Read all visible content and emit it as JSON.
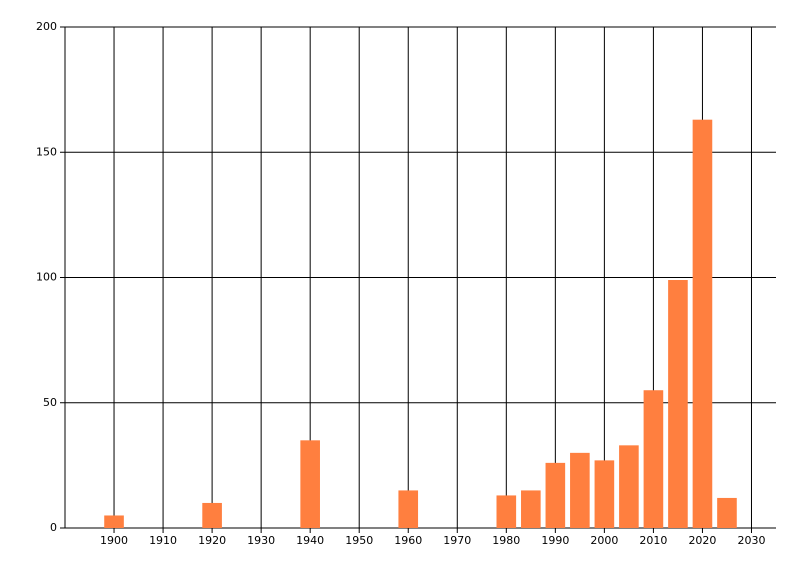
{
  "chart_data": {
    "type": "bar",
    "x": [
      1900,
      1920,
      1940,
      1960,
      1980,
      1985,
      1990,
      1995,
      2000,
      2005,
      2010,
      2015,
      2020,
      2025
    ],
    "values": [
      5,
      10,
      35,
      15,
      13,
      15,
      26,
      30,
      27,
      33,
      55,
      99,
      163,
      12
    ],
    "color": "#ff7f3f",
    "xlim": [
      1890,
      2035
    ],
    "xticks": [
      1900,
      1910,
      1920,
      1930,
      1940,
      1950,
      1960,
      1970,
      1980,
      1990,
      2000,
      2010,
      2020,
      2030
    ],
    "ylim": [
      0,
      200
    ],
    "yticks": [
      0,
      50,
      100,
      150,
      200
    ],
    "grid": true
  }
}
